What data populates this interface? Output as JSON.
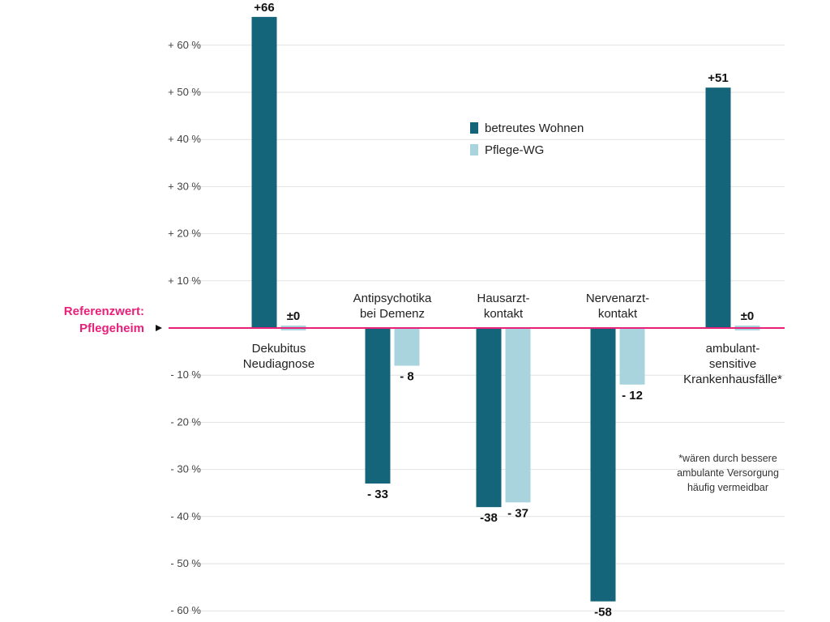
{
  "chart_data": {
    "type": "bar",
    "categories": [
      [
        "Dekubitus",
        "Neudiagnose"
      ],
      [
        "Antipsychotika",
        "bei Demenz"
      ],
      [
        "Hausarzt-",
        "kontakt"
      ],
      [
        "Nervenarzt-",
        "kontakt"
      ],
      [
        "ambulant-",
        "sensitive",
        "Krankenhausfälle*"
      ]
    ],
    "series": [
      {
        "name": "betreutes Wohnen",
        "color": "#14647a",
        "values": [
          66,
          -33,
          -38,
          -58,
          51
        ],
        "labels": [
          "+66",
          "- 33",
          "-38",
          "-58",
          "+51"
        ]
      },
      {
        "name": "Pflege-WG",
        "color": "#a9d4de",
        "values": [
          0,
          -8,
          -37,
          -12,
          0
        ],
        "labels": [
          "±0",
          "- 8",
          "- 37",
          "- 12",
          "±0"
        ]
      }
    ],
    "ylim": [
      -60,
      66
    ],
    "yticks": [
      60,
      50,
      40,
      30,
      20,
      10,
      -10,
      -20,
      -30,
      -40,
      -50,
      -60
    ],
    "ytick_labels": [
      "+ 60 %",
      "+ 50 %",
      "+ 40 %",
      "+ 30 %",
      "+ 20 %",
      "+ 10 %",
      "- 10 %",
      "- 20 %",
      "- 30 %",
      "- 40 %",
      "- 50 %",
      "- 60 %"
    ],
    "reference_label": [
      "Referenzwert:",
      "Pflegeheim"
    ],
    "reference_color": "#e8207a",
    "footnote": [
      "*wären durch bessere",
      "ambulante Versorgung",
      "häufig vermeidbar"
    ],
    "legend_position": "top-center",
    "grid": true
  }
}
